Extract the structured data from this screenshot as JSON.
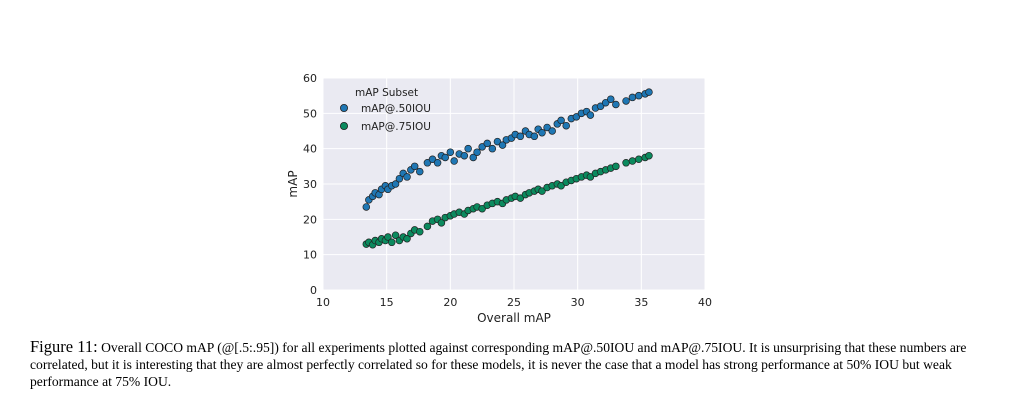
{
  "caption": {
    "label": "Figure 11:",
    "text": "Overall COCO mAP (@[.5:.95]) for all experiments plotted against corresponding mAP@.50IOU and mAP@.75IOU. It is unsurprising that these numbers are correlated, but it is interesting that they are almost perfectly correlated so for these models, it is never the case that a model has strong performance at 50% IOU but weak performance at 75% IOU."
  },
  "chart_data": {
    "type": "scatter",
    "xlabel": "Overall mAP",
    "ylabel": "mAP",
    "xlim": [
      10,
      40
    ],
    "ylim": [
      0,
      60
    ],
    "xticks": [
      10,
      15,
      20,
      25,
      30,
      35,
      40
    ],
    "yticks": [
      0,
      10,
      20,
      30,
      40,
      50,
      60
    ],
    "grid": true,
    "legend_title": "mAP Subset",
    "legend_position": "top-left",
    "series": [
      {
        "name": "mAP@.50IOU",
        "color": "#1f77b4",
        "x": [
          13.4,
          13.6,
          13.9,
          14.1,
          14.4,
          14.6,
          14.9,
          15.1,
          15.4,
          15.7,
          16.0,
          16.3,
          16.6,
          16.9,
          17.2,
          17.6,
          18.2,
          18.6,
          19.0,
          19.3,
          19.6,
          20.0,
          20.3,
          20.7,
          21.1,
          21.4,
          21.8,
          22.1,
          22.5,
          22.9,
          23.3,
          23.7,
          24.1,
          24.4,
          24.8,
          25.1,
          25.5,
          25.9,
          26.2,
          26.6,
          26.9,
          27.2,
          27.6,
          28.0,
          28.4,
          28.7,
          29.1,
          29.5,
          29.9,
          30.3,
          30.7,
          31.0,
          31.4,
          31.8,
          32.2,
          32.6,
          33.0,
          33.8,
          34.3,
          34.8,
          35.3,
          35.6
        ],
        "y": [
          23.5,
          25.5,
          26.5,
          27.5,
          27.0,
          28.5,
          29.5,
          28.5,
          29.5,
          30.0,
          31.5,
          33.0,
          32.0,
          34.0,
          35.0,
          33.5,
          36.0,
          37.0,
          36.0,
          38.0,
          37.5,
          39.0,
          36.5,
          38.5,
          38.0,
          40.0,
          37.5,
          39.0,
          40.5,
          41.5,
          40.0,
          42.0,
          41.0,
          42.5,
          43.0,
          44.0,
          43.5,
          45.0,
          44.0,
          43.5,
          45.5,
          44.5,
          46.0,
          45.0,
          47.0,
          48.0,
          46.5,
          48.5,
          49.0,
          50.0,
          50.5,
          49.5,
          51.5,
          52.0,
          53.0,
          54.0,
          52.5,
          53.5,
          54.5,
          55.0,
          55.5,
          56.0
        ]
      },
      {
        "name": "mAP@.75IOU",
        "color": "#0b8a5e",
        "x": [
          13.4,
          13.6,
          13.9,
          14.1,
          14.4,
          14.6,
          14.9,
          15.1,
          15.4,
          15.7,
          16.0,
          16.3,
          16.6,
          16.9,
          17.2,
          17.6,
          18.2,
          18.6,
          19.0,
          19.3,
          19.6,
          20.0,
          20.3,
          20.7,
          21.1,
          21.4,
          21.8,
          22.1,
          22.5,
          22.9,
          23.3,
          23.7,
          24.1,
          24.4,
          24.8,
          25.1,
          25.5,
          25.9,
          26.2,
          26.6,
          26.9,
          27.2,
          27.6,
          28.0,
          28.4,
          28.7,
          29.1,
          29.5,
          29.9,
          30.3,
          30.7,
          31.0,
          31.4,
          31.8,
          32.2,
          32.6,
          33.0,
          33.8,
          34.3,
          34.8,
          35.3,
          35.6
        ],
        "y": [
          13.0,
          13.5,
          12.8,
          14.0,
          13.5,
          14.5,
          14.0,
          15.0,
          13.5,
          15.5,
          14.0,
          15.0,
          14.5,
          16.0,
          17.0,
          16.5,
          18.0,
          19.5,
          20.0,
          19.0,
          20.5,
          21.0,
          21.5,
          22.0,
          21.5,
          22.5,
          23.0,
          23.5,
          23.0,
          24.0,
          24.5,
          25.0,
          24.5,
          25.5,
          26.0,
          26.5,
          26.0,
          27.0,
          27.5,
          28.0,
          28.5,
          28.0,
          29.0,
          29.5,
          30.0,
          29.5,
          30.5,
          31.0,
          31.5,
          32.0,
          32.5,
          32.0,
          33.0,
          33.5,
          34.0,
          34.5,
          35.0,
          36.0,
          36.5,
          37.0,
          37.5,
          38.0
        ]
      }
    ]
  }
}
